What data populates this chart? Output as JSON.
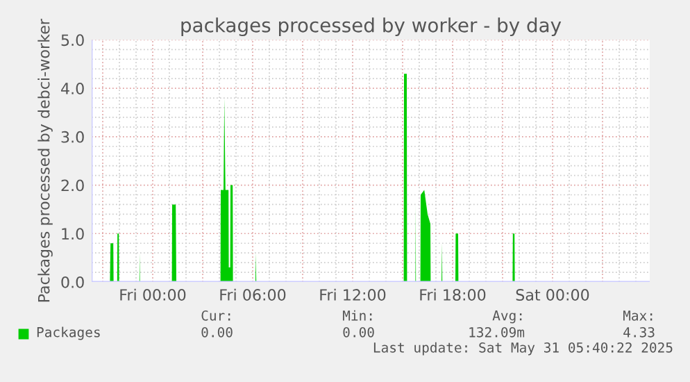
{
  "chart_data": {
    "type": "area",
    "title": "packages processed by worker - by day",
    "ylabel": "Packages processed by debci-worker",
    "series": [
      {
        "name": "Packages",
        "color": "#00cc00",
        "x": [
          "2025-05-29T20:24",
          "2025-05-29T21:26",
          "2025-05-29T21:28",
          "2025-05-29T21:38",
          "2025-05-29T21:39",
          "2025-05-29T21:52",
          "2025-05-29T21:53",
          "2025-05-29T21:58",
          "2025-05-29T21:59",
          "2025-05-29T23:12",
          "2025-05-29T23:13",
          "2025-05-29T23:14",
          "2025-05-30T01:09",
          "2025-05-30T01:10",
          "2025-05-30T01:23",
          "2025-05-30T01:25",
          "2025-05-30T04:04",
          "2025-05-30T04:05",
          "2025-05-30T04:15",
          "2025-05-30T04:18",
          "2025-05-30T04:22",
          "2025-05-30T04:33",
          "2025-05-30T04:34",
          "2025-05-30T04:39",
          "2025-05-30T04:40",
          "2025-05-30T04:48",
          "2025-05-30T04:49",
          "2025-05-30T06:10",
          "2025-05-30T06:11",
          "2025-05-30T06:13",
          "2025-05-30T15:04",
          "2025-05-30T15:05",
          "2025-05-30T15:15",
          "2025-05-30T15:16",
          "2025-05-30T15:46",
          "2025-05-30T15:47",
          "2025-05-30T15:48",
          "2025-05-30T16:04",
          "2025-05-30T16:05",
          "2025-05-30T16:18",
          "2025-05-30T16:30",
          "2025-05-30T16:40",
          "2025-05-30T16:41",
          "2025-05-30T17:20",
          "2025-05-30T17:22",
          "2025-05-30T17:23",
          "2025-05-30T18:10",
          "2025-05-30T18:11",
          "2025-05-30T18:20",
          "2025-05-30T18:21",
          "2025-05-30T21:36",
          "2025-05-30T21:37",
          "2025-05-30T21:43",
          "2025-05-30T21:44",
          "2025-05-31T05:40"
        ],
        "values": [
          0,
          0,
          0.8,
          0.8,
          0,
          0,
          1.0,
          1.0,
          0,
          0,
          0.6,
          0,
          0,
          1.6,
          1.6,
          0,
          0,
          1.9,
          1.9,
          3.8,
          1.9,
          1.9,
          0.3,
          0.3,
          2.0,
          2.0,
          0,
          0,
          0.6,
          0,
          0,
          4.3,
          4.3,
          0,
          0,
          1.6,
          0,
          0,
          1.8,
          1.9,
          1.4,
          1.2,
          0,
          0,
          0.8,
          0,
          0,
          1.0,
          1.0,
          0,
          0,
          1.0,
          1.0,
          0,
          0
        ]
      }
    ],
    "xlim": [
      "2025-05-29T20:20",
      "2025-05-31T05:50"
    ],
    "xticks": [
      {
        "value": "2025-05-29T21:00",
        "label": null
      },
      {
        "value": "2025-05-30T00:00",
        "label": "Fri 00:00"
      },
      {
        "value": "2025-05-30T03:00",
        "label": null
      },
      {
        "value": "2025-05-30T06:00",
        "label": "Fri 06:00"
      },
      {
        "value": "2025-05-30T09:00",
        "label": null
      },
      {
        "value": "2025-05-30T12:00",
        "label": "Fri 12:00"
      },
      {
        "value": "2025-05-30T15:00",
        "label": null
      },
      {
        "value": "2025-05-30T18:00",
        "label": "Fri 18:00"
      },
      {
        "value": "2025-05-30T21:00",
        "label": null
      },
      {
        "value": "2025-05-31T00:00",
        "label": "Sat 00:00"
      },
      {
        "value": "2025-05-31T03:00",
        "label": null
      }
    ],
    "ylim": [
      0,
      5
    ],
    "yticks": [
      {
        "value": 0,
        "label": "0.0"
      },
      {
        "value": 1,
        "label": "1.0"
      },
      {
        "value": 2,
        "label": "2.0"
      },
      {
        "value": 3,
        "label": "3.0"
      },
      {
        "value": 4,
        "label": "4.0"
      },
      {
        "value": 5,
        "label": "5.0"
      }
    ],
    "grid": true,
    "legend": "bottom",
    "annotations": [
      "Cur:",
      "Min:",
      "Avg:",
      "Max:",
      "0.00",
      "0.00",
      "132.09m",
      "4.33",
      "Last update: Sat May 31 05:40:22 2025"
    ]
  }
}
